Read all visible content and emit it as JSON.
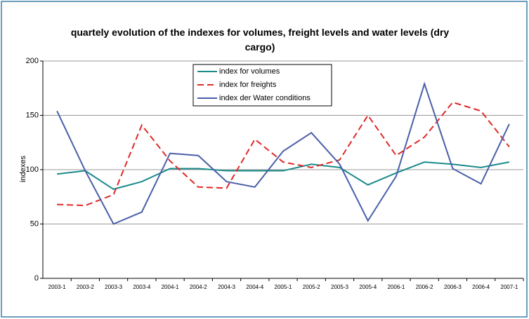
{
  "chart_data": {
    "type": "line",
    "title": "quartely evolution of the indexes for volumes, freight levels and water levels (dry cargo)",
    "y_label": "indexes",
    "categories": [
      "2003-1",
      "2003-2",
      "2003-3",
      "2003-4",
      "2004-1",
      "2004-2",
      "2004-3",
      "2004-4",
      "2005-1",
      "2005-2",
      "2005-3",
      "2005-4",
      "2006-1",
      "2006-2",
      "2006-3",
      "2006-4",
      "2007-1"
    ],
    "series": [
      {
        "name": "index for volumes",
        "color": "#1a8a8a",
        "dashed": false,
        "values": [
          96,
          99,
          82,
          89,
          101,
          101,
          99,
          99,
          99,
          105,
          102,
          86,
          97,
          107,
          105,
          102,
          107
        ]
      },
      {
        "name": "index for freights",
        "color": "#e02828",
        "dashed": true,
        "values": [
          68,
          67,
          77,
          141,
          108,
          84,
          83,
          128,
          107,
          102,
          109,
          150,
          113,
          130,
          162,
          154,
          121
        ]
      },
      {
        "name": "index der Water conditions",
        "color": "#4a5fa8",
        "dashed": false,
        "values": [
          154,
          99,
          50,
          61,
          115,
          113,
          89,
          84,
          117,
          134,
          105,
          53,
          94,
          179,
          101,
          87,
          142
        ]
      }
    ],
    "ylim": [
      0,
      200
    ],
    "yticks": [
      0,
      50,
      100,
      150,
      200
    ],
    "grid": true
  }
}
